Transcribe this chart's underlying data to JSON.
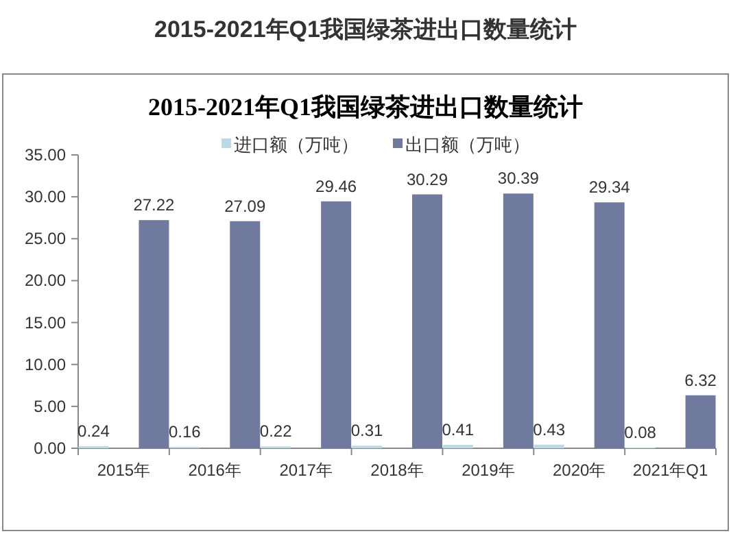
{
  "chart_data": {
    "type": "bar",
    "title": "2015-2021年Q1我国绿茶进出口数量统计",
    "subtitle": "2015-2021年Q1我国绿茶进出口数量统计",
    "categories": [
      "2015年",
      "2016年",
      "2017年",
      "2018年",
      "2019年",
      "2020年",
      "2021年Q1"
    ],
    "series": [
      {
        "name": "进口额（万吨）",
        "color": "#bcd9e6",
        "values": [
          0.24,
          0.16,
          0.22,
          0.31,
          0.41,
          0.43,
          0.08
        ],
        "value_labels": [
          "0.24",
          "0.16",
          "0.22",
          "0.31",
          "0.41",
          "0.43",
          "0.08"
        ]
      },
      {
        "name": "出口额（万吨）",
        "color": "#6f7a9e",
        "values": [
          27.22,
          27.09,
          29.46,
          30.29,
          30.39,
          29.34,
          6.32
        ],
        "value_labels": [
          "27.22",
          "27.09",
          "29.46",
          "30.29",
          "30.39",
          "29.34",
          "6.32"
        ]
      }
    ],
    "ylim": [
      0,
      35
    ],
    "yticks": [
      {
        "value": 0,
        "label": "0.00"
      },
      {
        "value": 5,
        "label": "5.00"
      },
      {
        "value": 10,
        "label": "10.00"
      },
      {
        "value": 15,
        "label": "15.00"
      },
      {
        "value": 20,
        "label": "20.00"
      },
      {
        "value": 25,
        "label": "25.00"
      },
      {
        "value": 30,
        "label": "30.00"
      },
      {
        "value": 35,
        "label": "35.00"
      }
    ],
    "legend": "top",
    "grid": false
  }
}
